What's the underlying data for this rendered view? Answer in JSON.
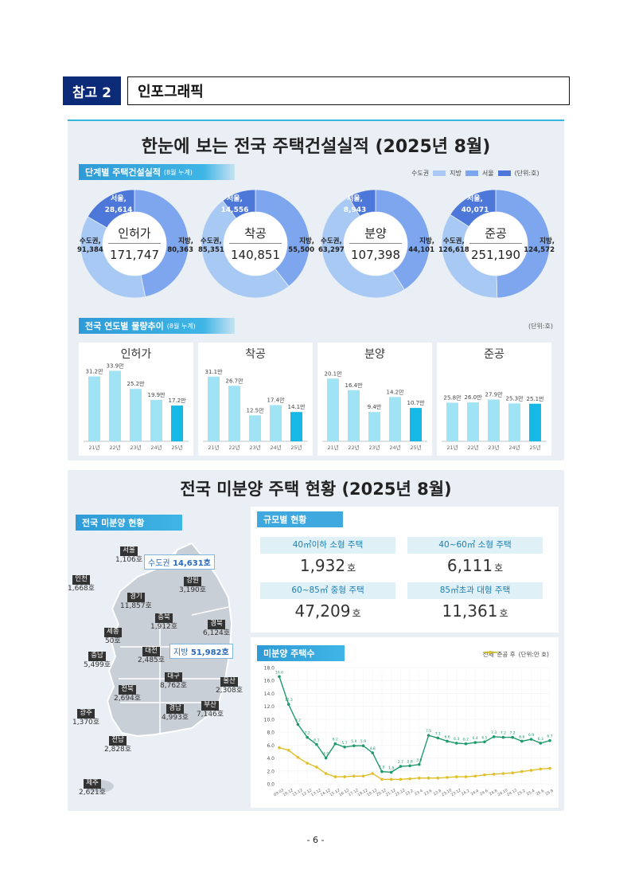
{
  "header": {
    "tag": "참고 2",
    "title": "인포그래픽"
  },
  "panel1": {
    "title": "한눈에 보는 전국 주택건설실적 (2025년 8월)",
    "section1": {
      "label": "단계별 주택건설실적",
      "note": "(8월 누계)"
    },
    "legend": {
      "metro": "수도권",
      "local": "지방",
      "seoul": "서울",
      "unit": "(단위:호)"
    },
    "colors": {
      "metro": "#a9c9f5",
      "local": "#7ea6ee",
      "seoul": "#4d77d9"
    },
    "donuts": [
      {
        "label": "인허가",
        "total": "171,747",
        "seoul_name": "서울,",
        "seoul_val": "28,614",
        "metro_name": "수도권,",
        "metro_val": "91,384",
        "local_name": "지방,",
        "local_val": "80,363",
        "metro": 91384,
        "local": 80363,
        "seoul": 28614
      },
      {
        "label": "착공",
        "total": "140,851",
        "seoul_name": "서울,",
        "seoul_val": "14,556",
        "metro_name": "수도권,",
        "metro_val": "85,351",
        "local_name": "지방,",
        "local_val": "55,500",
        "metro": 85351,
        "local": 55500,
        "seoul": 14556
      },
      {
        "label": "분양",
        "total": "107,398",
        "seoul_name": "서울,",
        "seoul_val": "8,943",
        "metro_name": "수도권,",
        "metro_val": "63,297",
        "local_name": "지방,",
        "local_val": "44,101",
        "metro": 63297,
        "local": 44101,
        "seoul": 8943
      },
      {
        "label": "준공",
        "total": "251,190",
        "seoul_name": "서울,",
        "seoul_val": "40,071",
        "metro_name": "수도권,",
        "metro_val": "126,618",
        "local_name": "지방,",
        "local_val": "124,572",
        "metro": 126618,
        "local": 124572,
        "seoul": 40071
      }
    ],
    "section2": {
      "label": "전국 연도별 물량추이",
      "note": "(8월 누계)",
      "unit": "(단위:호)"
    }
  },
  "chart_data": [
    {
      "type": "bar",
      "title": "인허가",
      "categories": [
        "21년",
        "22년",
        "23년",
        "24년",
        "25년"
      ],
      "values": [
        31.2,
        33.9,
        25.2,
        19.9,
        17.2
      ],
      "labels": [
        "31.2만",
        "33.9만",
        "25.2만",
        "19.9만",
        "17.2만"
      ],
      "ylim": [
        0,
        36
      ]
    },
    {
      "type": "bar",
      "title": "착공",
      "categories": [
        "21년",
        "22년",
        "23년",
        "24년",
        "25년"
      ],
      "values": [
        31.1,
        26.7,
        12.5,
        17.4,
        14.1
      ],
      "labels": [
        "31.1만",
        "26.7만",
        "12.5만",
        "17.4만",
        "14.1만"
      ],
      "ylim": [
        0,
        36
      ]
    },
    {
      "type": "bar",
      "title": "분양",
      "categories": [
        "21년",
        "22년",
        "23년",
        "24년",
        "25년"
      ],
      "values": [
        20.1,
        16.4,
        9.4,
        14.2,
        10.7
      ],
      "labels": [
        "20.1만",
        "16.4만",
        "9.4만",
        "14.2만",
        "10.7만"
      ],
      "ylim": [
        0,
        24
      ]
    },
    {
      "type": "bar",
      "title": "준공",
      "categories": [
        "21년",
        "22년",
        "23년",
        "24년",
        "25년"
      ],
      "values": [
        25.8,
        26.0,
        27.9,
        25.3,
        25.1
      ],
      "labels": [
        "25.8만",
        "26.0만",
        "27.9만",
        "25.3만",
        "25.1만"
      ],
      "ylim": [
        0,
        50
      ]
    },
    {
      "type": "line",
      "title": "미분양 주택수",
      "legend": [
        "전체",
        "준공 후"
      ],
      "unit": "(단위:만 호)",
      "ylim": [
        0,
        18
      ],
      "yticks": [
        "0.0",
        "2.0",
        "4.0",
        "6.0",
        "8.0",
        "10.0",
        "12.0",
        "14.0",
        "16.0",
        "18.0"
      ],
      "x": [
        "09.03",
        "10.12",
        "11.12",
        "12.12",
        "13.12",
        "14.12",
        "15.12",
        "16.12",
        "17.12",
        "18.12",
        "19.12",
        "20.12",
        "21.12",
        "22.12",
        "23.2",
        "23.4",
        "23.6",
        "23.8",
        "23.10",
        "23.12",
        "24.2",
        "24.4",
        "24.6",
        "24.8",
        "24.10",
        "24.12",
        "25.2",
        "25.4",
        "25.6",
        "25.8"
      ],
      "series": [
        {
          "name": "전체",
          "color": "#1f9a6a",
          "values": [
            16.6,
            12.3,
            9.2,
            7.2,
            6.1,
            4.0,
            6.2,
            5.7,
            5.9,
            5.9,
            4.8,
            1.9,
            1.8,
            2.7,
            2.8,
            3.0,
            7.5,
            7.1,
            6.6,
            6.3,
            6.2,
            6.4,
            6.5,
            7.3,
            7.2,
            7.2,
            6.6,
            6.9,
            6.3,
            6.7
          ]
        },
        {
          "name": "준공 후",
          "color": "#e0c02a",
          "values": [
            5.6,
            5.2,
            4.1,
            3.2,
            2.6,
            1.6,
            1.1,
            1.1,
            1.2,
            1.2,
            1.6,
            0.7,
            0.7,
            0.7,
            0.8,
            0.9,
            0.9,
            0.9,
            1.0,
            1.1,
            1.1,
            1.2,
            1.4,
            1.5,
            1.6,
            1.7,
            1.9,
            2.1,
            2.3,
            2.4
          ]
        }
      ],
      "point_labels": [
        "16.6",
        "12.3",
        "9.2",
        "7.2",
        "6.1",
        "4.0",
        "6.2",
        "5.7",
        "5.9",
        "5.9",
        "4.8",
        "1.9",
        "1.8",
        "2.7",
        "2.8",
        "3.0",
        "7.5",
        "7.1",
        "6.6",
        "6.3",
        "6.2",
        "6.4",
        "6.5",
        "7.3",
        "7.2",
        "7.2",
        "6.6",
        "6.9",
        "6.3",
        "6.7"
      ]
    }
  ],
  "panel2": {
    "title": "전국 미분양 주택 현황  (2025년 8월)",
    "map_tag": "전국 미분양 현황",
    "callout_metro": {
      "name": "수도권",
      "val": "14,631호"
    },
    "callout_local": {
      "name": "지방",
      "val": "51,982호"
    },
    "regions": [
      {
        "name": "서울",
        "val": "1,106호"
      },
      {
        "name": "인천",
        "val": "1,668호"
      },
      {
        "name": "경기",
        "val": "11,857호"
      },
      {
        "name": "강원",
        "val": "3,190호"
      },
      {
        "name": "충북",
        "val": "1,912호"
      },
      {
        "name": "세종",
        "val": "50호"
      },
      {
        "name": "충남",
        "val": "5,499호"
      },
      {
        "name": "대전",
        "val": "2,485호"
      },
      {
        "name": "경북",
        "val": "6,124호"
      },
      {
        "name": "대구",
        "val": "8,762호"
      },
      {
        "name": "전북",
        "val": "2,694호"
      },
      {
        "name": "울산",
        "val": "2,308호"
      },
      {
        "name": "경남",
        "val": "4,993호"
      },
      {
        "name": "부산",
        "val": "7,146호"
      },
      {
        "name": "광주",
        "val": "1,370호"
      },
      {
        "name": "전남",
        "val": "2,828호"
      },
      {
        "name": "제주",
        "val": "2,621호"
      }
    ],
    "size_tag": "규모별 현황",
    "sizes": [
      {
        "label": "40㎡이하 소형 주택",
        "value": "1,932",
        "unit": "호"
      },
      {
        "label": "40~60㎡ 소형 주택",
        "value": "6,111",
        "unit": "호"
      },
      {
        "label": "60~85㎡ 중형 주택",
        "value": "47,209",
        "unit": "호"
      },
      {
        "label": "85㎡초과 대형 주택",
        "value": "11,361",
        "unit": "호"
      }
    ],
    "line_tag": "미분양 주택수"
  },
  "page_number": "- 6 -"
}
